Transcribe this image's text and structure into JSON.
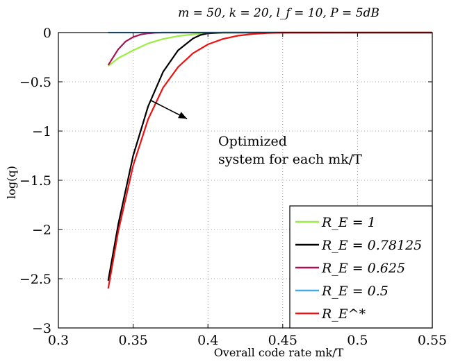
{
  "chart_data": {
    "type": "line",
    "title": "m = 50, k = 20, l_f = 10, P = 5dB",
    "xlabel": "Overall code rate mk/T",
    "ylabel": "log(q)",
    "xlim": [
      0.3,
      0.55
    ],
    "ylim": [
      -3,
      0
    ],
    "xticks": [
      "0.3",
      "0.35",
      "0.4",
      "0.45",
      "0.5",
      "0.55"
    ],
    "yticks": [
      "0",
      "−0.5",
      "−1",
      "−1.5",
      "−2",
      "−2.5",
      "−3"
    ],
    "grid": true,
    "legend_position": "bottom-right",
    "series": [
      {
        "name": "R_E = 1",
        "color": "#99ee44",
        "x": [
          0.3333,
          0.34,
          0.35,
          0.36,
          0.37,
          0.38,
          0.39,
          0.4,
          0.41,
          0.42,
          0.55
        ],
        "y": [
          -0.34,
          -0.26,
          -0.18,
          -0.11,
          -0.065,
          -0.035,
          -0.018,
          -0.008,
          -0.003,
          0,
          0
        ]
      },
      {
        "name": "R_E = 0.78125",
        "color": "#000000",
        "x": [
          0.3333,
          0.34,
          0.35,
          0.36,
          0.37,
          0.38,
          0.39,
          0.395,
          0.4,
          0.41,
          0.55
        ],
        "y": [
          -2.52,
          -1.95,
          -1.25,
          -0.75,
          -0.4,
          -0.18,
          -0.06,
          -0.025,
          -0.008,
          0,
          0
        ]
      },
      {
        "name": "R_E = 0.625",
        "color": "#aa1155",
        "x": [
          0.3333,
          0.34,
          0.345,
          0.35,
          0.355,
          0.36,
          0.365,
          0.37,
          0.55
        ],
        "y": [
          -0.33,
          -0.17,
          -0.09,
          -0.045,
          -0.02,
          -0.008,
          -0.002,
          0,
          0
        ]
      },
      {
        "name": "R_E = 0.5",
        "color": "#44aadd",
        "x": [
          0.3333,
          0.55
        ],
        "y": [
          0,
          0
        ]
      },
      {
        "name": "R_E^*",
        "color": "#ee1111",
        "x": [
          0.3333,
          0.34,
          0.35,
          0.36,
          0.37,
          0.38,
          0.39,
          0.4,
          0.41,
          0.42,
          0.43,
          0.44,
          0.45,
          0.55
        ],
        "y": [
          -2.6,
          -2.02,
          -1.35,
          -0.88,
          -0.56,
          -0.35,
          -0.21,
          -0.12,
          -0.065,
          -0.032,
          -0.014,
          -0.005,
          -0.001,
          0
        ]
      }
    ],
    "annotation": {
      "text_lines": [
        "Optimized",
        "system for each mk/T"
      ],
      "arrow_from": [
        0.362,
        -0.69
      ],
      "arrow_to": [
        0.386,
        -0.875
      ]
    }
  }
}
